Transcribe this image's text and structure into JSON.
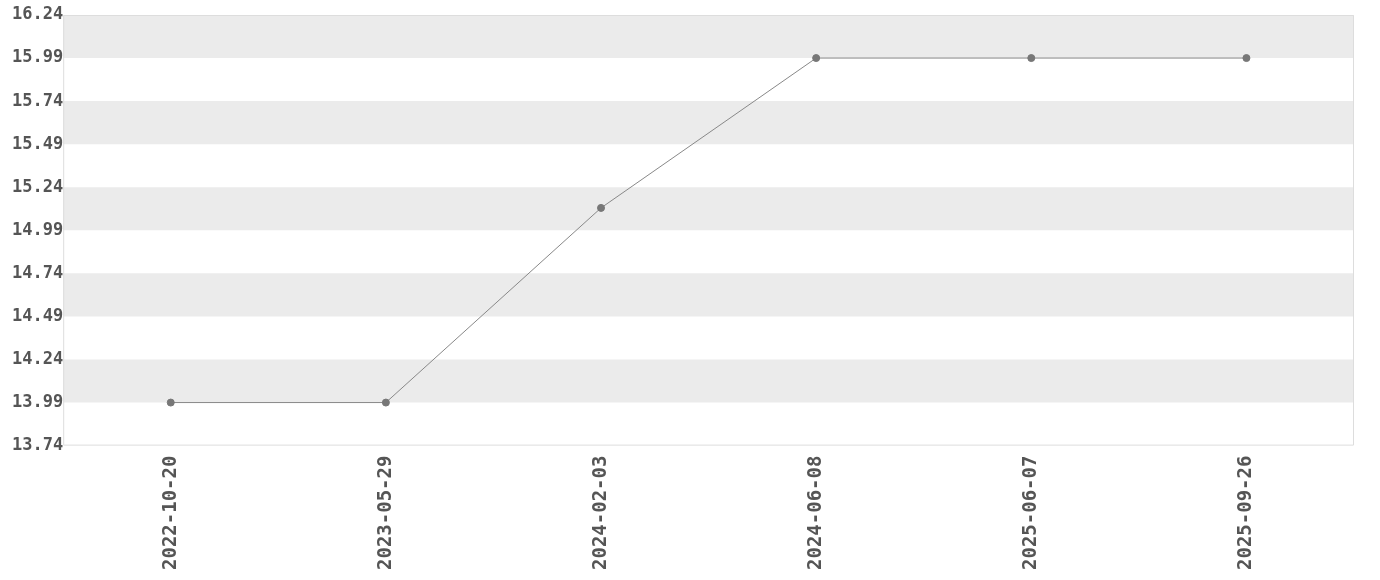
{
  "chart_data": {
    "type": "line",
    "categories": [
      "2022-10-20",
      "2023-05-29",
      "2024-02-03",
      "2024-06-08",
      "2025-06-07",
      "2025-09-26"
    ],
    "series": [
      {
        "color": "#777777",
        "values": [
          13.99,
          13.99,
          15.12,
          15.99,
          15.99,
          15.99
        ]
      }
    ],
    "ylim": [
      13.74,
      16.24
    ],
    "yticks": [
      13.74,
      13.99,
      14.24,
      14.49,
      14.74,
      14.99,
      15.24,
      15.49,
      15.74,
      15.99,
      16.24
    ],
    "bands": [
      {
        "axis": "y",
        "from": 13.99,
        "to": 14.24,
        "color": "#ebebeb"
      },
      {
        "axis": "y",
        "from": 14.49,
        "to": 14.74,
        "color": "#ebebeb"
      },
      {
        "axis": "y",
        "from": 14.99,
        "to": 15.24,
        "color": "#ebebeb"
      },
      {
        "axis": "y",
        "from": 15.49,
        "to": 15.74,
        "color": "#ebebeb"
      },
      {
        "axis": "y",
        "from": 15.99,
        "to": 16.24,
        "color": "#ebebeb"
      }
    ],
    "marker": "circle",
    "line_style": "solid",
    "legend": false
  }
}
